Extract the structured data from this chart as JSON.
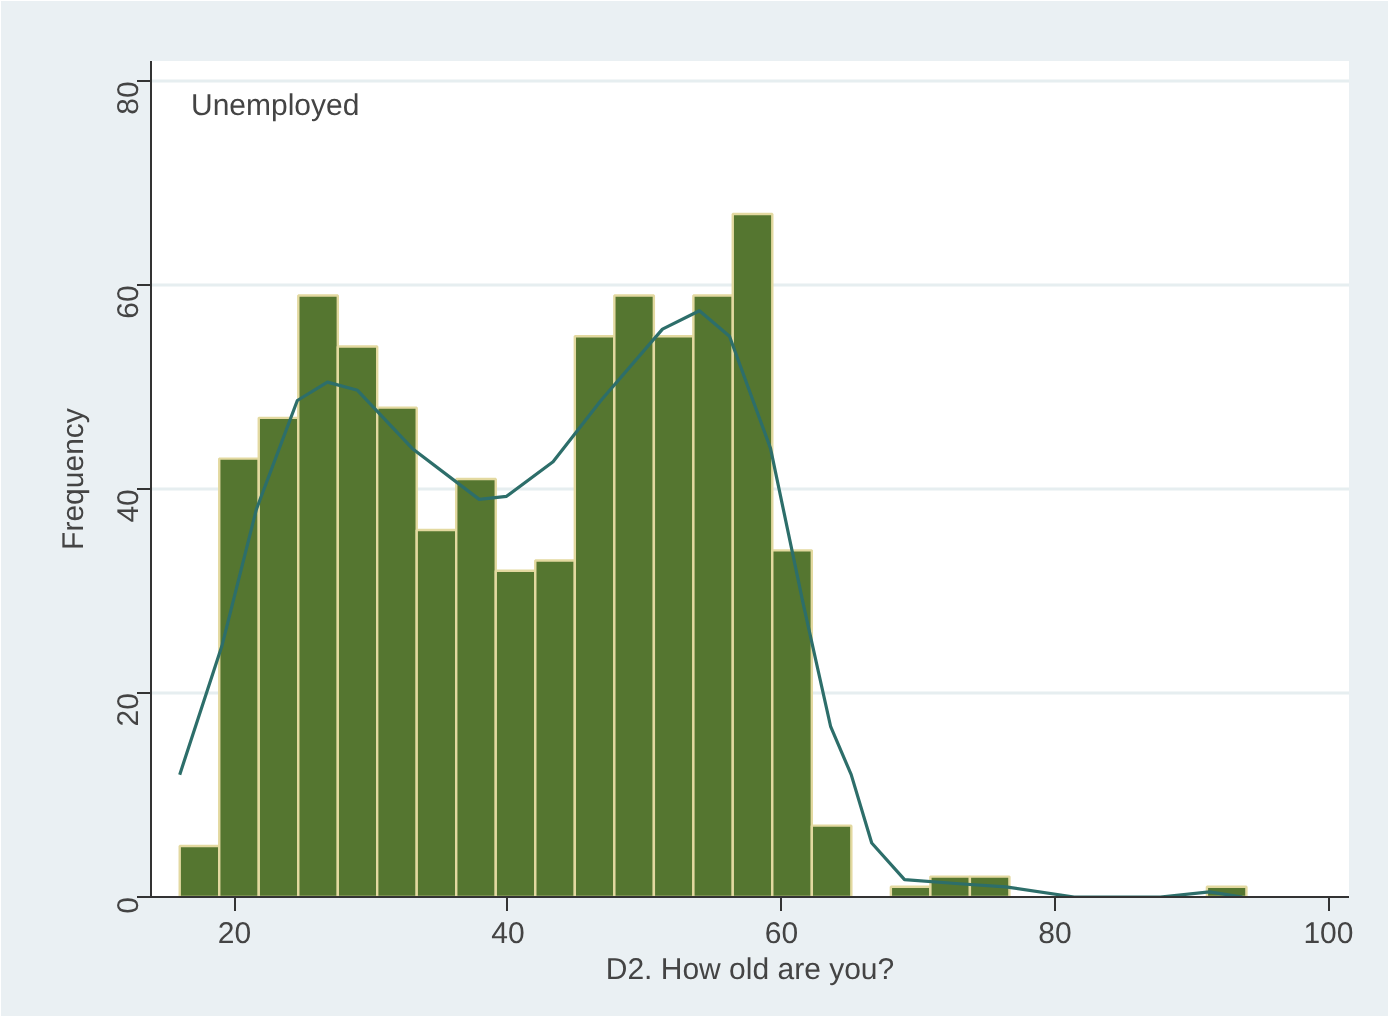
{
  "chart_data": {
    "type": "histogram",
    "xlabel": "D2. How old are you?",
    "ylabel": "Frequency",
    "annotations": [
      "Unemployed"
    ],
    "bins": [
      16,
      18.89,
      21.78,
      24.67,
      27.56,
      30.44,
      33.33,
      36.22,
      39.11,
      42,
      44.89,
      47.78,
      50.67,
      53.56,
      56.44,
      59.33,
      62.22,
      65.11,
      68,
      70.89,
      73.78,
      76.67,
      79.56,
      82.44,
      85.33,
      88.22,
      91.11,
      94
    ],
    "values": [
      5,
      43,
      47,
      59,
      54,
      48,
      36,
      41,
      32,
      33,
      55,
      59,
      55,
      59,
      67,
      34,
      7,
      0,
      1,
      2,
      2,
      0,
      0,
      0,
      0,
      0,
      1
    ],
    "color": "#557630",
    "series": [
      {
        "type": "line",
        "color": "#2d6e6a",
        "x": [
          16,
          19.1,
          21.6,
          24.6,
          26.8,
          29,
          33,
          37.9,
          39.9,
          43.3,
          46.8,
          51.3,
          54,
          56.2,
          59.2,
          61.6,
          63.6,
          65.1,
          66.6,
          69,
          73,
          76.4,
          81.4,
          87.7,
          91.3,
          93.7
        ],
        "values": [
          12,
          24.7,
          38,
          48.7,
          50.5,
          49.7,
          44,
          39,
          39.3,
          42.7,
          48.7,
          55.7,
          57.5,
          55,
          44,
          28.7,
          16.7,
          12,
          5.3,
          1.7,
          1.3,
          1,
          0,
          0,
          0.5,
          0
        ]
      }
    ],
    "xlim": [
      13.9,
      101.5
    ],
    "ylim": [
      0,
      82
    ],
    "xticks": [
      20,
      40,
      60,
      80,
      100
    ],
    "yticks": [
      0,
      20,
      40,
      60,
      80
    ],
    "grid": "y"
  }
}
